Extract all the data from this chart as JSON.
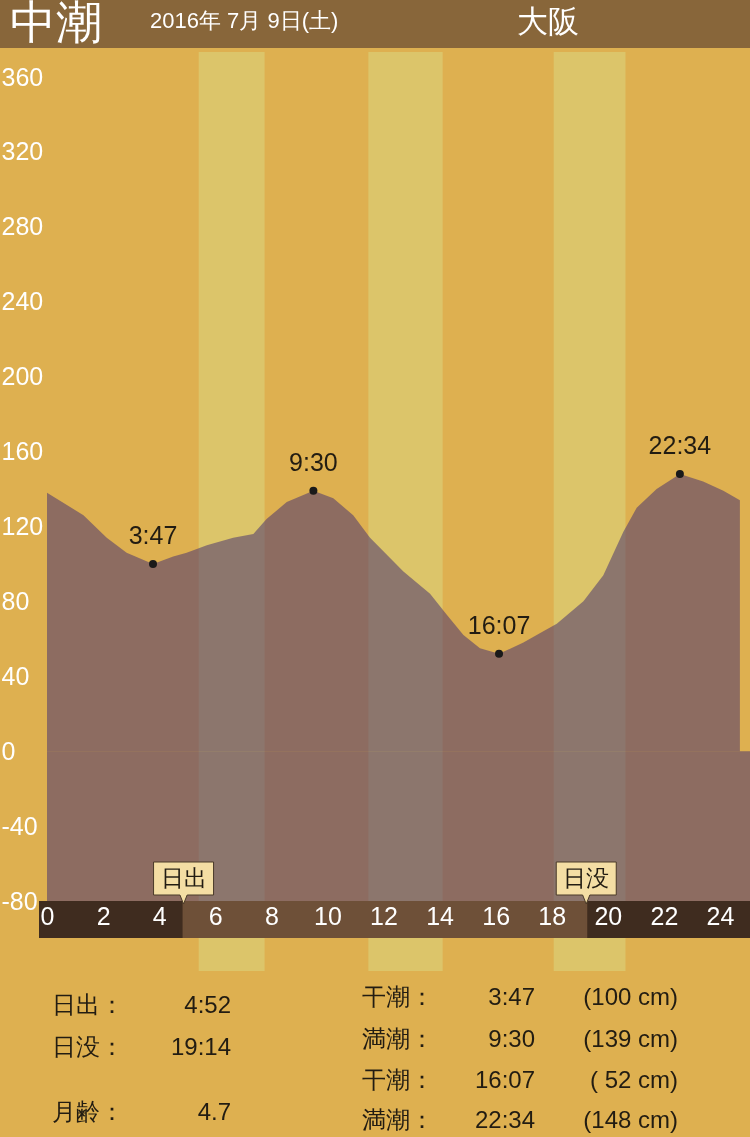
{
  "chart_data": {
    "type": "area",
    "title": "中潮",
    "subtitle": "2016年 7月 9日(土)",
    "annotations": [
      "大阪",
      {
        "text": "3:47",
        "x": 3.78,
        "y": 100
      },
      {
        "text": "9:30",
        "x": 9.5,
        "y": 139
      },
      {
        "text": "16:07",
        "x": 16.12,
        "y": 52
      },
      {
        "text": "22:34",
        "x": 22.57,
        "y": 148
      },
      "日出：",
      "4:52",
      "日没：",
      "19:14",
      "月齢：",
      "4.7",
      "干潮：",
      "3:47",
      "(100 cm)",
      "満潮：",
      "9:30",
      "(139 cm)",
      "干潮：",
      "16:07",
      "( 52 cm)",
      "満潮：",
      "22:34",
      "(148 cm)"
    ],
    "series": [
      {
        "color": "#4b3470",
        "x": [
          0,
          1.3,
          2.13,
          2.84,
          3.78,
          4.5,
          4.98,
          5.7,
          6.64,
          7.36,
          7.83,
          8.55,
          9.5,
          10.21,
          10.92,
          11.52,
          12.71,
          13.66,
          14.25,
          14.85,
          15.44,
          16.12,
          16.99,
          17.7,
          18.18,
          19.13,
          19.84,
          20.55,
          21.03,
          21.74,
          22.57,
          23.4,
          24.12,
          24.71
        ],
        "values": [
          138,
          126,
          114,
          106,
          100,
          104,
          106,
          110,
          114,
          116,
          124,
          133,
          139,
          135,
          126,
          114,
          96,
          84,
          73,
          62,
          55,
          52,
          58,
          64,
          68,
          80,
          94,
          117,
          130,
          140,
          148,
          144,
          139,
          134
        ]
      },
      {
        "type": "scatter",
        "color": "#1a1a1a",
        "marker": "circle",
        "x": [
          3.78,
          9.5,
          16.12,
          22.57
        ],
        "values": [
          100,
          139,
          52,
          148
        ]
      }
    ],
    "xlim": [
      0,
      25.07
    ],
    "xticks": [
      0,
      2,
      4,
      6,
      8,
      10,
      12,
      14,
      16,
      18,
      20,
      22,
      24
    ],
    "ylim": [
      -80,
      360
    ],
    "yticks": [
      -80,
      -40,
      0,
      40,
      80,
      120,
      160,
      200,
      240,
      280,
      320,
      360
    ],
    "bands": [
      {
        "axis": "x",
        "from": 5.41,
        "to": 7.76,
        "color": "#dcc56a"
      },
      {
        "axis": "x",
        "from": 11.46,
        "to": 14.11,
        "color": "#dcc56a"
      },
      {
        "axis": "x",
        "from": 18.07,
        "to": 20.63,
        "color": "#dcc56a"
      },
      {
        "axis": "y",
        "from": -80,
        "to": 0,
        "color": "#4b3470"
      }
    ],
    "ref_lines": [
      {
        "axis": "x",
        "value": 4.87,
        "label": "日出",
        "color": "#6e5038"
      },
      {
        "axis": "x",
        "value": 19.23,
        "label": "日没",
        "color": "#6e5038"
      }
    ]
  }
}
